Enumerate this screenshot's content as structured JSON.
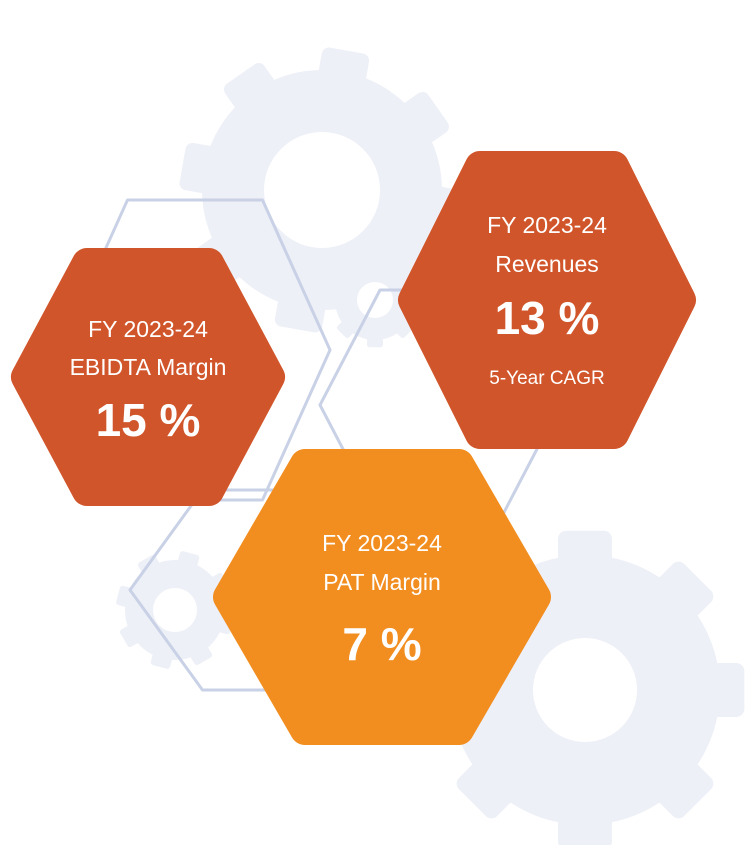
{
  "hexagons": [
    {
      "lines": [
        "FY 2023-24",
        "EBIDTA Margin"
      ],
      "value": "15 %"
    },
    {
      "lines": [
        "FY 2023-24",
        "Revenues"
      ],
      "value": "13 %",
      "note": "5-Year CAGR"
    },
    {
      "lines": [
        "FY 2023-24",
        "PAT Margin"
      ],
      "value": "7 %"
    }
  ]
}
